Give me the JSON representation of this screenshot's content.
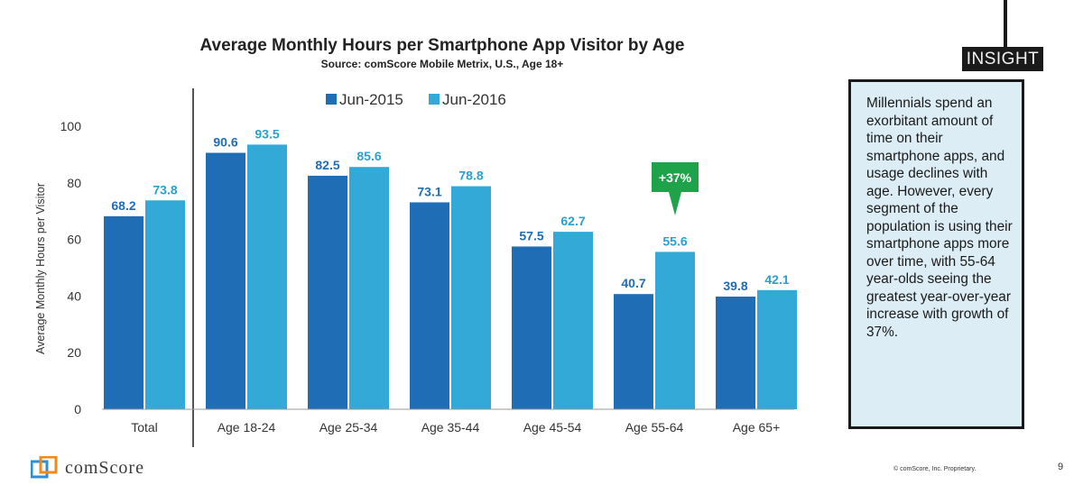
{
  "chart_data": {
    "type": "bar",
    "title": "Average Monthly Hours per Smartphone App Visitor by Age",
    "subtitle": "Source: comScore Mobile Metrix, U.S., Age 18+",
    "ylabel": "Average Monthly Hours per Visitor",
    "xlabel": "",
    "ylim": [
      0,
      100
    ],
    "yticks": [
      0,
      20,
      40,
      60,
      80,
      100
    ],
    "grid": false,
    "legend_position": "top",
    "categories": [
      "Total",
      "Age 18-24",
      "Age 25-34",
      "Age 35-44",
      "Age 45-54",
      "Age 55-64",
      "Age 65+"
    ],
    "series": [
      {
        "name": "Jun-2015",
        "color": "#1f6db5",
        "label_color": "#1f6db5",
        "values": [
          68.2,
          90.6,
          82.5,
          73.1,
          57.5,
          40.7,
          39.8
        ]
      },
      {
        "name": "Jun-2016",
        "color": "#33a9d8",
        "label_color": "#2aa0d0",
        "values": [
          73.8,
          93.5,
          85.6,
          78.8,
          62.7,
          55.6,
          42.1
        ]
      }
    ],
    "callout": {
      "text": "+37%",
      "category": "Age 55-64",
      "color": "#1fa34a"
    }
  },
  "insight": {
    "tag": "INSIGHT",
    "text": "Millennials spend an exorbitant amount of time on their smartphone apps, and usage declines with age. However, every segment of the population is using their smartphone apps more over time, with 55-64 year-olds seeing the greatest year-over-year increase with growth of 37%."
  },
  "footer": {
    "brand": "comScore",
    "copyright": "© comScore, Inc. Proprietary.",
    "page_number": "9"
  }
}
